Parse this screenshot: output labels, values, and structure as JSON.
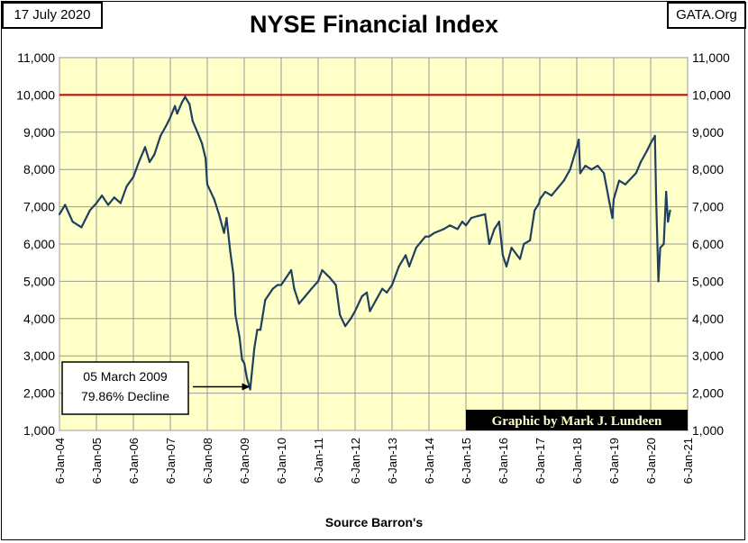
{
  "header": {
    "date_label": "17 July 2020",
    "site_label": "GATA.Org",
    "title": "NYSE Financial Index"
  },
  "footer": {
    "source_label": "Source Barron's"
  },
  "colors": {
    "plot_background": "#ffffc8",
    "series_line": "#1f3f5f",
    "reference_line": "#c00000",
    "grid": "#9a9a9a",
    "credit_background": "#000000",
    "credit_text": "#ffffc8"
  },
  "chart_data": {
    "type": "line",
    "title": "NYSE Financial Index",
    "xlabel": "Source Barron's",
    "ylabel": "",
    "xlim": [
      "2004-01-06",
      "2021-01-06"
    ],
    "ylim": [
      1000,
      11000
    ],
    "x_ticks": [
      "6-Jan-04",
      "6-Jan-05",
      "6-Jan-06",
      "6-Jan-07",
      "6-Jan-08",
      "6-Jan-09",
      "6-Jan-10",
      "6-Jan-11",
      "6-Jan-12",
      "6-Jan-13",
      "6-Jan-14",
      "6-Jan-15",
      "6-Jan-16",
      "6-Jan-17",
      "6-Jan-18",
      "6-Jan-19",
      "6-Jan-20",
      "6-Jan-21"
    ],
    "y_ticks": [
      "1,000",
      "2,000",
      "3,000",
      "4,000",
      "5,000",
      "6,000",
      "7,000",
      "8,000",
      "9,000",
      "10,000",
      "11,000"
    ],
    "grid": true,
    "reference_line": {
      "y": 10000
    },
    "series": [
      {
        "x": [
          "2004-01-06",
          "2004-03-01",
          "2004-05-15",
          "2004-08-10",
          "2004-11-01",
          "2005-01-06",
          "2005-03-01",
          "2005-05-01",
          "2005-07-01",
          "2005-09-01",
          "2005-11-01",
          "2006-01-06",
          "2006-03-01",
          "2006-05-01",
          "2006-06-15",
          "2006-08-01",
          "2006-10-01",
          "2006-12-01",
          "2007-01-06",
          "2007-02-20",
          "2007-03-15",
          "2007-05-01",
          "2007-06-01",
          "2007-07-15",
          "2007-08-15",
          "2007-10-01",
          "2007-11-15",
          "2007-12-20",
          "2008-01-06",
          "2008-03-15",
          "2008-05-01",
          "2008-06-20",
          "2008-07-15",
          "2008-08-20",
          "2008-09-20",
          "2008-10-10",
          "2008-11-20",
          "2008-12-15",
          "2009-01-06",
          "2009-02-01",
          "2009-03-05",
          "2009-04-15",
          "2009-05-15",
          "2009-06-15",
          "2009-08-01",
          "2009-10-15",
          "2009-12-01",
          "2010-01-06",
          "2010-04-15",
          "2010-05-15",
          "2010-07-01",
          "2010-09-01",
          "2010-11-01",
          "2011-01-06",
          "2011-02-15",
          "2011-05-01",
          "2011-07-01",
          "2011-08-10",
          "2011-10-01",
          "2011-11-25",
          "2012-01-06",
          "2012-03-15",
          "2012-05-01",
          "2012-06-01",
          "2012-08-01",
          "2012-10-01",
          "2012-11-15",
          "2013-01-06",
          "2013-03-15",
          "2013-05-20",
          "2013-06-25",
          "2013-09-01",
          "2013-12-01",
          "2014-01-06",
          "2014-03-01",
          "2014-06-01",
          "2014-08-01",
          "2014-10-15",
          "2014-12-01",
          "2015-01-06",
          "2015-03-01",
          "2015-05-01",
          "2015-07-15",
          "2015-08-25",
          "2015-10-15",
          "2015-12-01",
          "2016-01-06",
          "2016-02-11",
          "2016-04-01",
          "2016-06-24",
          "2016-08-01",
          "2016-10-01",
          "2016-11-15",
          "2016-12-31",
          "2017-01-06",
          "2017-03-01",
          "2017-05-01",
          "2017-07-01",
          "2017-09-01",
          "2017-11-01",
          "2018-01-06",
          "2018-01-26",
          "2018-02-09",
          "2018-04-01",
          "2018-06-01",
          "2018-08-01",
          "2018-10-01",
          "2018-12-24",
          "2019-01-06",
          "2019-03-01",
          "2019-05-01",
          "2019-08-15",
          "2019-10-01",
          "2019-12-01",
          "2020-01-06",
          "2020-02-18",
          "2020-03-01",
          "2020-03-23",
          "2020-04-10",
          "2020-05-15",
          "2020-06-08",
          "2020-06-26",
          "2020-07-17"
        ],
        "values": [
          6800,
          7050,
          6600,
          6450,
          6900,
          7100,
          7300,
          7050,
          7250,
          7100,
          7550,
          7800,
          8200,
          8600,
          8200,
          8400,
          8900,
          9200,
          9400,
          9700,
          9500,
          9800,
          9950,
          9750,
          9300,
          9000,
          8700,
          8300,
          7600,
          7200,
          6800,
          6300,
          6700,
          5800,
          5200,
          4100,
          3500,
          2900,
          2800,
          2400,
          2100,
          3200,
          3700,
          3700,
          4500,
          4800,
          4900,
          4900,
          5300,
          4800,
          4400,
          4600,
          4800,
          5000,
          5300,
          5100,
          4900,
          4100,
          3800,
          4000,
          4200,
          4600,
          4700,
          4200,
          4500,
          4800,
          4700,
          4900,
          5400,
          5700,
          5400,
          5900,
          6200,
          6200,
          6300,
          6400,
          6500,
          6400,
          6600,
          6500,
          6700,
          6750,
          6800,
          6000,
          6400,
          6600,
          5700,
          5400,
          5900,
          5600,
          6000,
          6100,
          6900,
          7100,
          7200,
          7400,
          7300,
          7500,
          7700,
          8000,
          8600,
          8800,
          7900,
          8100,
          8000,
          8100,
          7900,
          6700,
          7200,
          7700,
          7600,
          7900,
          8200,
          8500,
          8700,
          8900,
          7200,
          5000,
          5900,
          6000,
          7400,
          6600,
          6900
        ]
      }
    ],
    "annotations": [
      {
        "text_line1": "05 March 2009",
        "text_line2": "79.86%  Decline",
        "x": "2009-03-05",
        "y": 2100
      }
    ],
    "credit": "Graphic by Mark J. Lundeen"
  }
}
